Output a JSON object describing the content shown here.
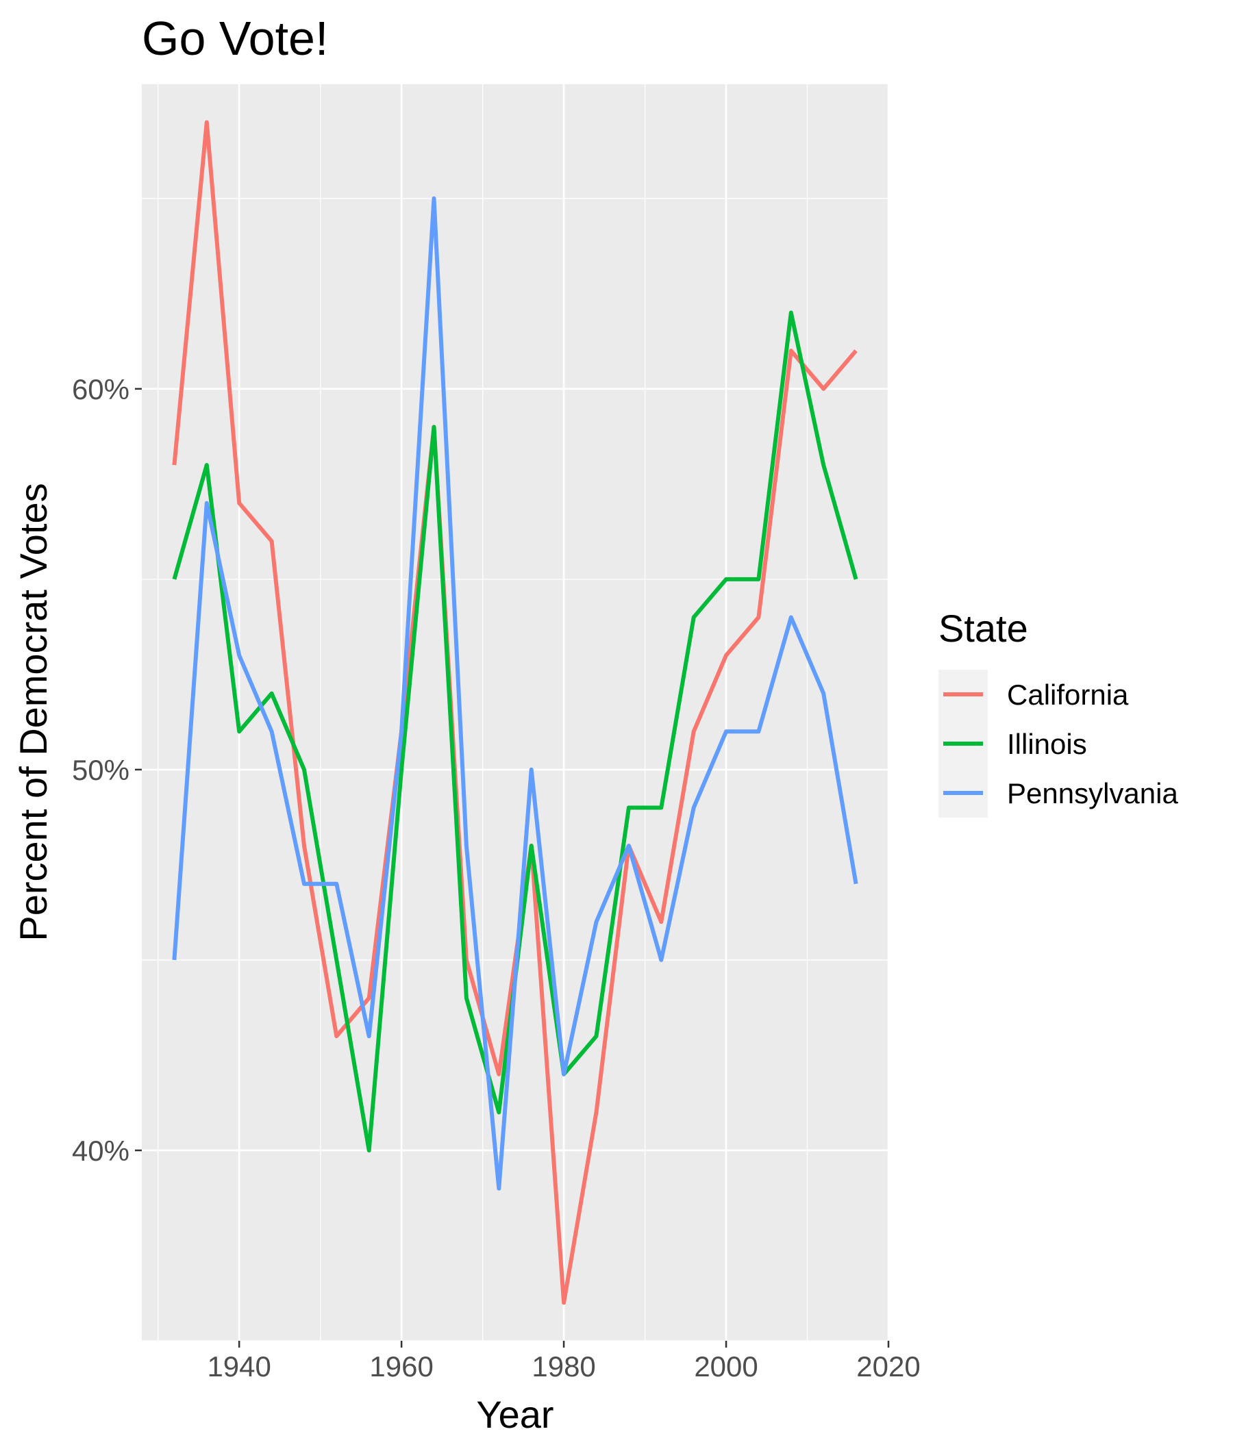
{
  "chart_data": {
    "type": "line",
    "title": "Go Vote!",
    "xlabel": "Year",
    "ylabel": "Percent of Democrat Votes",
    "x": [
      1932,
      1936,
      1940,
      1944,
      1948,
      1952,
      1956,
      1960,
      1964,
      1968,
      1972,
      1976,
      1980,
      1984,
      1988,
      1992,
      1996,
      2000,
      2004,
      2008,
      2012,
      2016
    ],
    "xlim": [
      1928,
      2020
    ],
    "ylim": [
      35,
      68
    ],
    "x_ticks": [
      1940,
      1960,
      1980,
      2000,
      2020
    ],
    "x_tick_labels": [
      "1940",
      "1960",
      "1980",
      "2000",
      "2020"
    ],
    "y_ticks": [
      40,
      50,
      60
    ],
    "y_tick_labels": [
      "40%",
      "50%",
      "60%"
    ],
    "grid": true,
    "legend": {
      "title": "State",
      "position": "right"
    },
    "series": [
      {
        "name": "California",
        "color": "#F8766D",
        "values": [
          58,
          67,
          57,
          56,
          48,
          43,
          44,
          51,
          59,
          45,
          42,
          48,
          36,
          41,
          48,
          46,
          51,
          53,
          54,
          61,
          60,
          61
        ]
      },
      {
        "name": "Illinois",
        "color": "#00BA38",
        "values": [
          55,
          58,
          51,
          52,
          50,
          45,
          40,
          50,
          59,
          44,
          41,
          48,
          42,
          43,
          49,
          49,
          54,
          55,
          55,
          62,
          58,
          55
        ]
      },
      {
        "name": "Pennsylvania",
        "color": "#619CFF",
        "values": [
          45,
          57,
          53,
          51,
          47,
          47,
          43,
          51,
          65,
          48,
          39,
          50,
          42,
          46,
          48,
          45,
          49,
          51,
          51,
          54,
          52,
          47
        ]
      }
    ]
  }
}
